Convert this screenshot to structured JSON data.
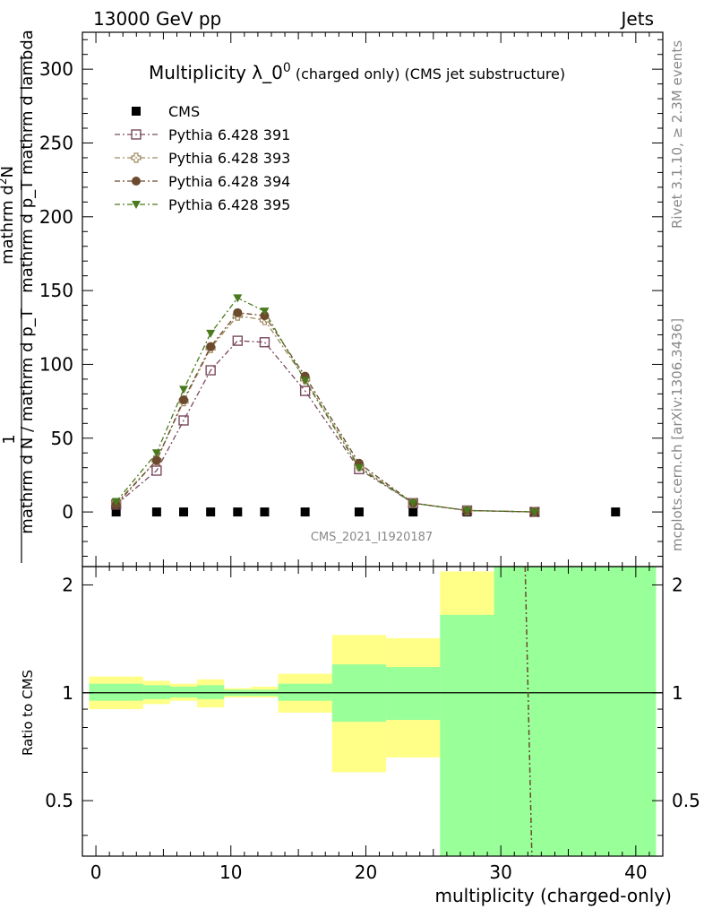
{
  "header": {
    "left": "13000 GeV pp",
    "right": "Jets"
  },
  "side_text": {
    "rivet": "Rivet 3.1.10, ≥ 2.3M events",
    "mcplots": "mcplots.cern.ch [arXiv:1306.3436]"
  },
  "watermark": "CMS_2021_I1920187",
  "chart_data": {
    "type": "line",
    "title": "Multiplicity λ_0^0 (charged only) (CMS jet substructure)",
    "xlabel": "multiplicity (charged-only)",
    "ylabel": "1 / mathrm d N / mathrm d p_T mathrm d^2N / mathrm d p_T mathrm d lambda",
    "ratio_ylabel": "Ratio to CMS",
    "xlim": [
      -1,
      42
    ],
    "ylim": [
      -37,
      325
    ],
    "ratio_ylim": [
      0.35,
      2.25
    ],
    "x_ticks": [
      0,
      10,
      20,
      30,
      40
    ],
    "y_ticks": [
      0,
      50,
      100,
      150,
      200,
      250,
      300
    ],
    "ratio_ticks": [
      0.5,
      1,
      2
    ],
    "legend_placement": "top-left",
    "series": [
      {
        "name": "CMS",
        "color": "#000000",
        "marker": "square-filled",
        "x": [
          1.5,
          4.5,
          6.5,
          8.5,
          10.5,
          12.5,
          15.5,
          19.5,
          23.5,
          27.5,
          32.5,
          38.5
        ],
        "values": [
          0,
          0,
          0,
          0,
          0,
          0,
          0,
          0,
          0,
          0,
          0,
          0
        ]
      },
      {
        "name": "Pythia 6.428 391",
        "color": "#7a4a5e",
        "marker": "square-open",
        "x": [
          1.5,
          4.5,
          6.5,
          8.5,
          10.5,
          12.5,
          15.5,
          19.5,
          23.5,
          27.5,
          32.5
        ],
        "values": [
          5,
          28,
          62,
          96,
          116,
          115,
          82,
          29,
          6,
          1,
          0
        ]
      },
      {
        "name": "Pythia 6.428 393",
        "color": "#a08a60",
        "marker": "cross-open",
        "x": [
          1.5,
          4.5,
          6.5,
          8.5,
          10.5,
          12.5,
          15.5,
          19.5,
          23.5,
          27.5,
          32.5
        ],
        "values": [
          6,
          35,
          75,
          111,
          133,
          130,
          90,
          31,
          6,
          1,
          0
        ]
      },
      {
        "name": "Pythia 6.428 394",
        "color": "#6b4a2e",
        "marker": "circle-filled",
        "x": [
          1.5,
          4.5,
          6.5,
          8.5,
          10.5,
          12.5,
          15.5,
          19.5,
          23.5,
          27.5,
          32.5
        ],
        "values": [
          5,
          35,
          76,
          112,
          135,
          133,
          92,
          33,
          6,
          1,
          0
        ]
      },
      {
        "name": "Pythia 6.428 395",
        "color": "#4a7a1e",
        "marker": "triangle-down-filled",
        "x": [
          1.5,
          4.5,
          6.5,
          8.5,
          10.5,
          12.5,
          15.5,
          19.5,
          23.5,
          27.5,
          32.5
        ],
        "values": [
          7,
          40,
          83,
          121,
          145,
          136,
          89,
          30,
          6,
          1,
          0
        ]
      }
    ],
    "ratio_bands": {
      "bins": [
        [
          -0.5,
          3.5
        ],
        [
          3.5,
          5.5
        ],
        [
          5.5,
          7.5
        ],
        [
          7.5,
          9.5
        ],
        [
          9.5,
          11.5
        ],
        [
          11.5,
          13.5
        ],
        [
          13.5,
          17.5
        ],
        [
          17.5,
          21.5
        ],
        [
          21.5,
          25.5
        ],
        [
          25.5,
          29.5
        ],
        [
          29.5,
          41.5
        ]
      ],
      "stat": [
        [
          0.95,
          1.06
        ],
        [
          0.96,
          1.05
        ],
        [
          0.97,
          1.04
        ],
        [
          0.96,
          1.05
        ],
        [
          0.98,
          1.02
        ],
        [
          0.98,
          1.02
        ],
        [
          0.95,
          1.06
        ],
        [
          0.83,
          1.2
        ],
        [
          0.84,
          1.18
        ],
        [
          0.35,
          1.65
        ],
        [
          0.35,
          2.25
        ]
      ],
      "total": [
        [
          0.9,
          1.11
        ],
        [
          0.93,
          1.08
        ],
        [
          0.95,
          1.06
        ],
        [
          0.91,
          1.09
        ],
        [
          0.97,
          1.03
        ],
        [
          0.97,
          1.04
        ],
        [
          0.88,
          1.13
        ],
        [
          0.6,
          1.45
        ],
        [
          0.66,
          1.42
        ],
        [
          0.35,
          2.18
        ],
        [
          0.35,
          2.25
        ]
      ],
      "stat_color": "#99ff99",
      "total_color": "#ffff88"
    },
    "ratio_line": {
      "x": [
        31.8,
        32.3
      ],
      "values": [
        2.25,
        0.35
      ],
      "color": "#6b4a2e"
    }
  }
}
